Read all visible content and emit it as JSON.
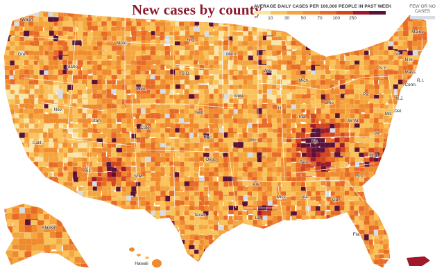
{
  "title": "New cases by county",
  "legend": {
    "title": "AVERAGE DAILY CASES PER 100,000 PEOPLE IN PAST WEEK",
    "ticks": [
      "10",
      "30",
      "50",
      "70",
      "100",
      "250"
    ],
    "colors": [
      "#f9e5a8",
      "#f9c25a",
      "#f5a53d",
      "#ef8a2e",
      "#e86a27",
      "#d2461f",
      "#a0192b",
      "#5a1238"
    ],
    "few_label": "FEW OR NO CASES",
    "few_color": "#d6dde6"
  },
  "state_labels": [
    "Wash.",
    "Ore.",
    "Idaho",
    "Mont.",
    "N.D.",
    "Minn.",
    "Wis.",
    "Mich.",
    "Maine",
    "Vt.",
    "N.H.",
    "Mass.",
    "N.Y.",
    "Pa.",
    "Ohio",
    "Ind.",
    "Ill.",
    "Iowa",
    "Neb.",
    "S.D.",
    "Wyo.",
    "Nev.",
    "Utah",
    "Colo.",
    "Calif.",
    "Ariz.",
    "N.M.",
    "Texas",
    "Okla.",
    "Kan.",
    "Mo.",
    "Ark.",
    "La.",
    "Miss.",
    "Ala.",
    "Ga.",
    "Fla.",
    "S.C.",
    "N.C.",
    "Va.",
    "W.Va.",
    "Ky.",
    "Tenn.",
    "Md.",
    "Del.",
    "N.J.",
    "Conn.",
    "R.I.",
    "Alaska",
    "Hawaii"
  ],
  "icons": {
    "map": "us-county-map-icon"
  }
}
